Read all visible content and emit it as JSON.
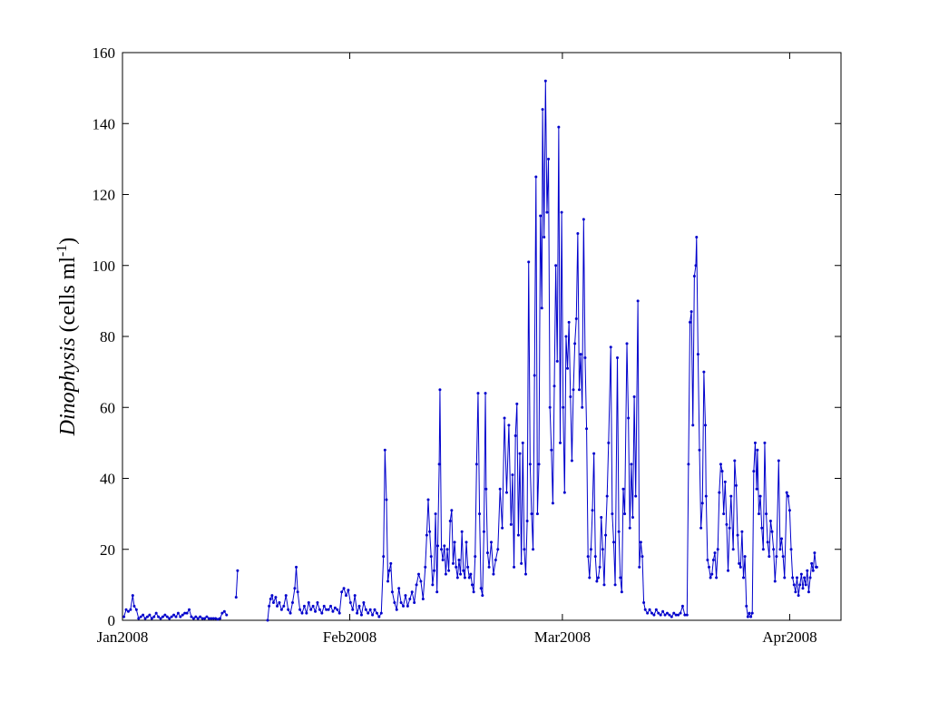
{
  "chart_data": {
    "type": "line",
    "ylabel_parts": [
      "Dinophysis",
      " (cells ml",
      "-1",
      ")"
    ],
    "color": "#0000cc",
    "xlim": [
      0,
      98
    ],
    "ylim": [
      0,
      160
    ],
    "xticks": [
      {
        "value": 0,
        "label": "Jan2008"
      },
      {
        "value": 31,
        "label": "Feb2008"
      },
      {
        "value": 60,
        "label": "Mar2008"
      },
      {
        "value": 91,
        "label": "Apr2008"
      }
    ],
    "yticks": [
      0,
      20,
      40,
      60,
      80,
      100,
      120,
      140,
      160
    ],
    "grid": false,
    "x": [
      0.2,
      0.5,
      0.8,
      1.1,
      1.4,
      1.6,
      1.9,
      2.2,
      2.5,
      2.8,
      3.1,
      3.4,
      3.7,
      4.0,
      4.3,
      4.6,
      4.9,
      5.2,
      5.5,
      5.8,
      6.1,
      6.4,
      6.7,
      7.0,
      7.3,
      7.6,
      7.9,
      8.2,
      8.5,
      8.8,
      9.1,
      9.4,
      9.7,
      10.0,
      10.3,
      10.6,
      10.9,
      11.2,
      11.5,
      11.8,
      12.1,
      12.4,
      12.7,
      13.0,
      13.3,
      13.6,
      13.9,
      14.2,
      14.8,
      15.5,
      15.7,
      17.5,
      19.8,
      20.0,
      20.2,
      20.4,
      20.6,
      20.9,
      21.1,
      21.4,
      21.7,
      22.0,
      22.3,
      22.6,
      22.9,
      23.2,
      23.5,
      23.7,
      23.9,
      24.2,
      24.5,
      24.8,
      25.1,
      25.4,
      25.7,
      26.0,
      26.3,
      26.6,
      26.9,
      27.2,
      27.5,
      27.8,
      28.1,
      28.4,
      28.7,
      29.0,
      29.3,
      29.6,
      29.9,
      30.2,
      30.5,
      30.8,
      31.1,
      31.4,
      31.7,
      32.0,
      32.3,
      32.6,
      32.9,
      33.2,
      33.5,
      33.8,
      34.1,
      34.4,
      34.7,
      35.0,
      35.3,
      35.6,
      35.8,
      36.0,
      36.2,
      36.4,
      36.6,
      36.8,
      37.1,
      37.4,
      37.7,
      38.0,
      38.3,
      38.6,
      38.9,
      39.2,
      39.5,
      39.8,
      40.1,
      40.4,
      40.7,
      41.0,
      41.3,
      41.5,
      41.7,
      41.9,
      42.1,
      42.3,
      42.5,
      42.7,
      42.9,
      43.0,
      43.2,
      43.3,
      43.5,
      43.7,
      43.9,
      44.1,
      44.3,
      44.5,
      44.7,
      44.9,
      45.1,
      45.3,
      45.5,
      45.7,
      45.9,
      46.1,
      46.3,
      46.5,
      46.7,
      46.9,
      47.1,
      47.3,
      47.5,
      47.7,
      47.9,
      48.1,
      48.3,
      48.5,
      48.7,
      48.9,
      49.1,
      49.3,
      49.5,
      49.6,
      49.8,
      50.0,
      50.3,
      50.6,
      50.9,
      51.2,
      51.5,
      51.8,
      52.1,
      52.4,
      52.7,
      53.0,
      53.2,
      53.4,
      53.6,
      53.8,
      54.0,
      54.2,
      54.4,
      54.6,
      54.8,
      55.0,
      55.2,
      55.4,
      55.6,
      55.8,
      56.0,
      56.2,
      56.4,
      56.6,
      56.8,
      57.0,
      57.2,
      57.3,
      57.5,
      57.7,
      57.9,
      58.1,
      58.3,
      58.5,
      58.7,
      58.9,
      59.1,
      59.3,
      59.5,
      59.7,
      59.9,
      60.1,
      60.3,
      60.5,
      60.7,
      60.9,
      61.1,
      61.3,
      61.5,
      61.7,
      61.9,
      62.1,
      62.3,
      62.5,
      62.7,
      62.9,
      63.1,
      63.3,
      63.5,
      63.7,
      63.9,
      64.1,
      64.3,
      64.5,
      64.7,
      64.9,
      65.1,
      65.3,
      65.5,
      65.7,
      65.9,
      66.1,
      66.3,
      66.6,
      66.8,
      67.0,
      67.2,
      67.5,
      67.7,
      67.9,
      68.1,
      68.3,
      68.5,
      68.8,
      69.0,
      69.2,
      69.4,
      69.6,
      69.8,
      70.0,
      70.3,
      70.5,
      70.7,
      70.9,
      71.1,
      71.3,
      71.6,
      71.9,
      72.2,
      72.5,
      72.8,
      73.1,
      73.4,
      73.7,
      74.0,
      74.3,
      74.6,
      74.9,
      75.2,
      75.5,
      75.8,
      76.1,
      76.4,
      76.7,
      77.0,
      77.2,
      77.4,
      77.6,
      77.8,
      78.0,
      78.2,
      78.3,
      78.5,
      78.7,
      78.9,
      79.1,
      79.3,
      79.5,
      79.6,
      79.8,
      80.0,
      80.2,
      80.4,
      80.6,
      80.8,
      81.0,
      81.2,
      81.4,
      81.6,
      81.8,
      82.0,
      82.2,
      82.4,
      82.6,
      82.8,
      83.0,
      83.3,
      83.5,
      83.7,
      83.9,
      84.1,
      84.3,
      84.5,
      84.7,
      84.9,
      85.1,
      85.3,
      85.5,
      85.7,
      85.9,
      86.1,
      86.3,
      86.5,
      86.6,
      86.8,
      87.0,
      87.2,
      87.4,
      87.6,
      87.8,
      88.0,
      88.2,
      88.4,
      88.6,
      88.8,
      89.0,
      89.2,
      89.5,
      89.7,
      89.9,
      90.1,
      90.3,
      90.6,
      90.8,
      91.0,
      91.2,
      91.4,
      91.6,
      91.8,
      92.0,
      92.2,
      92.4,
      92.6,
      92.8,
      93.0,
      93.2,
      93.4,
      93.6,
      93.8,
      94.0,
      94.2,
      94.4,
      94.6,
      94.7
    ],
    "values": [
      1,
      3,
      2.5,
      3,
      7,
      4,
      3,
      0.5,
      1,
      1.5,
      0.5,
      1,
      1.5,
      0.5,
      1,
      2,
      1,
      0.5,
      1,
      1.5,
      1,
      0.5,
      1,
      1.5,
      1,
      2,
      1,
      1.5,
      2,
      2,
      3,
      1,
      0.5,
      1,
      0.5,
      1,
      0.5,
      0.5,
      1,
      0.5,
      0.5,
      0.5,
      0.5,
      0.3,
      0.5,
      2,
      2.5,
      1.5,
      null,
      6.5,
      14,
      null,
      0,
      4,
      6,
      7,
      5,
      6.5,
      4,
      5,
      3,
      4,
      7,
      3,
      2,
      5,
      9,
      15,
      8,
      3,
      2,
      4,
      2,
      5,
      3,
      4,
      2.5,
      5,
      3,
      2,
      4,
      3,
      3,
      4,
      2.5,
      3.5,
      3,
      2,
      8,
      9,
      7,
      8.5,
      5,
      3,
      7,
      2,
      4,
      1.5,
      5,
      3,
      2,
      3,
      1.5,
      3,
      2,
      1,
      2,
      18,
      48,
      34,
      11,
      14,
      16,
      8,
      5,
      3,
      9,
      5,
      4,
      7,
      4,
      6,
      8,
      5,
      10,
      13,
      11,
      6,
      15,
      24,
      34,
      25,
      18,
      10,
      14,
      30,
      8,
      21,
      44,
      65,
      20,
      17,
      21,
      13,
      20,
      14,
      28,
      31,
      16,
      22,
      15,
      12,
      17,
      13,
      25,
      14,
      12,
      22,
      15,
      12,
      13,
      10,
      8,
      18,
      44,
      64,
      30,
      9,
      7,
      25,
      64,
      37,
      19,
      15,
      22,
      13,
      17,
      20,
      37,
      26,
      57,
      36,
      55,
      27,
      41,
      15,
      52,
      61,
      24,
      47,
      16,
      50,
      20,
      13,
      28,
      101,
      44,
      30,
      20,
      69,
      125,
      30,
      44,
      114,
      88,
      144,
      108,
      152,
      115,
      130,
      60,
      48,
      33,
      66,
      100,
      73,
      139,
      50,
      115,
      60,
      36,
      80,
      71,
      84,
      63,
      45,
      65,
      78,
      85,
      109,
      65,
      75,
      60,
      113,
      74,
      54,
      18,
      12,
      20,
      31,
      47,
      18,
      11,
      12,
      15,
      29,
      20,
      10,
      24,
      35,
      50,
      77,
      30,
      22,
      10,
      74,
      25,
      12,
      8,
      37,
      30,
      78,
      57,
      26,
      44,
      29,
      63,
      35,
      90,
      15,
      22,
      18,
      5,
      3,
      2,
      3,
      2,
      1.5,
      3,
      2,
      1.5,
      2.5,
      1.5,
      2,
      1.5,
      1,
      2,
      1.5,
      1.5,
      2,
      4,
      1.5,
      1.5,
      44,
      84,
      87,
      55,
      97,
      100,
      108,
      75,
      48,
      26,
      33,
      70,
      55,
      35,
      17,
      15,
      12,
      13,
      17,
      19,
      12,
      20,
      36,
      44,
      42,
      30,
      39,
      27,
      14,
      26,
      35,
      20,
      45,
      38,
      24,
      16,
      15,
      25,
      12,
      18,
      4,
      1,
      2,
      1,
      2,
      42,
      50,
      37,
      48,
      30,
      35,
      26,
      20,
      50,
      30,
      22,
      18,
      28,
      25,
      20,
      11,
      18,
      45,
      20,
      23,
      18,
      12,
      36,
      35,
      31,
      20,
      12,
      10,
      8,
      12,
      7,
      10,
      13,
      9,
      12,
      10,
      14,
      8,
      12,
      16,
      14,
      19,
      15,
      15
    ]
  }
}
